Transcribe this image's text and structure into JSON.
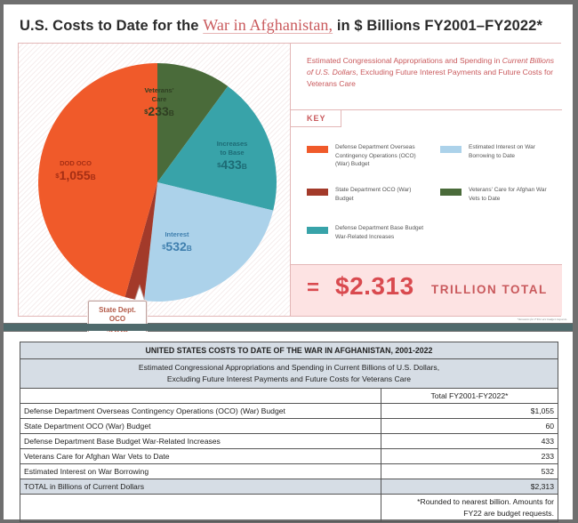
{
  "infographic": {
    "title_prefix": "U.S. Costs to Date for the ",
    "title_highlight": "War in Afghanistan,",
    "title_suffix": " in $ Billions FY2001–FY2022*",
    "description_part1": "Estimated Congressional Appropriations and Spending in ",
    "description_italic": "Current Billions of U.S. Dollars",
    "description_part2": ", Excluding Future Interest Payments and Future Costs for Veterans Care",
    "key_label": "KEY",
    "total_equals": "=",
    "total_amount": "$2.313",
    "total_unit": "TRILLION TOTAL",
    "fine_print": "*Amounts for FY22 are budget requests."
  },
  "chart_data": {
    "type": "pie",
    "title": "U.S. Costs to Date for the War in Afghanistan, in $ Billions FY2001–FY2022*",
    "unit": "B",
    "currency": "$",
    "slices": [
      {
        "key": "veterans",
        "label_line1": "Veterans'",
        "label_line2": "Care",
        "value": 233,
        "value_text": "233",
        "color": "#4a6b3a",
        "text_color": "#2f3f22",
        "legend": "Veterans' Care for Afghan War Vets to Date"
      },
      {
        "key": "base",
        "label_line1": "Increases",
        "label_line2": "to Base",
        "value": 433,
        "value_text": "433",
        "color": "#38a3a9",
        "text_color": "#1d6b75",
        "legend": "Defense Department Base Budget War-Related Increases"
      },
      {
        "key": "interest",
        "label_line1": "Interest",
        "label_line2": "",
        "value": 532,
        "value_text": "532",
        "color": "#acd2ea",
        "text_color": "#3f7fae",
        "legend": "Estimated Interest on War Borrowing to Date"
      },
      {
        "key": "state",
        "label_line1": "State Dept.",
        "label_line2": "OCO",
        "value": 60,
        "value_text": "60",
        "color": "#a33a2a",
        "text_color": "#b35a48",
        "legend": "State Department OCO (War) Budget"
      },
      {
        "key": "dod",
        "label_line1": "DOD OCO",
        "label_line2": "",
        "value": 1055,
        "value_text": "1,055",
        "color": "#f05a2a",
        "text_color": "#a52e14",
        "legend": "Defense Department Overseas Contingency Operations (OCO) (War) Budget"
      }
    ],
    "total": 2313
  },
  "legend_order": [
    "dod",
    "interest",
    "state",
    "veterans",
    "base"
  ],
  "table": {
    "title": "UNITED STATES COSTS TO DATE OF THE WAR IN AFGHANISTAN, 2001-2022",
    "subtitle_line1": "Estimated Congressional Appropriations and Spending in Current Billions of U.S. Dollars,",
    "subtitle_line2": "Excluding Future Interest Payments and Future Costs for Veterans Care",
    "column_header": "Total FY2001-FY2022*",
    "rows": [
      {
        "label": "Defense Department Overseas Contingency Operations (OCO) (War) Budget",
        "value": "$1,055"
      },
      {
        "label": "State Department OCO (War) Budget",
        "value": "60"
      },
      {
        "label": "Defense Department Base Budget War-Related Increases",
        "value": "433"
      },
      {
        "label": "Veterans Care for Afghan War Vets to Date",
        "value": "233"
      },
      {
        "label": "Estimated Interest on War Borrowing",
        "value": "532"
      }
    ],
    "total_label": "TOTAL in Billions of Current Dollars",
    "total_value": "$2,313",
    "note_line1": "*Rounded to nearest billion. Amounts for",
    "note_line2": "FY22 are budget requests."
  }
}
